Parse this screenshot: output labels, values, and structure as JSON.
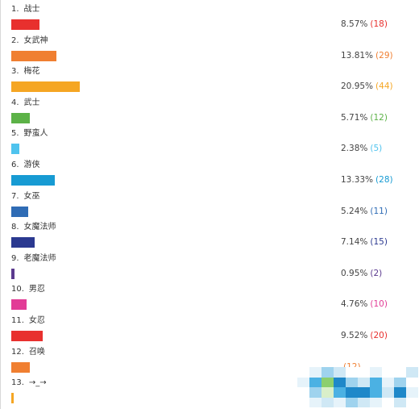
{
  "chart_data": {
    "type": "bar",
    "orientation": "horizontal",
    "unit": "%",
    "max_value": 20.95,
    "items": [
      {
        "rank": "1.",
        "name": "战士",
        "percent": "8.57%",
        "count": "(18)",
        "value": 8.57,
        "color": "#e8302e"
      },
      {
        "rank": "2.",
        "name": "女武神",
        "percent": "13.81%",
        "count": "(29)",
        "value": 13.81,
        "color": "#f07f31"
      },
      {
        "rank": "3.",
        "name": "梅花",
        "percent": "20.95%",
        "count": "(44)",
        "value": 20.95,
        "color": "#f5a623"
      },
      {
        "rank": "4.",
        "name": "武士",
        "percent": "5.71%",
        "count": "(12)",
        "value": 5.71,
        "color": "#5cb247"
      },
      {
        "rank": "5.",
        "name": "野蛮人",
        "percent": "2.38%",
        "count": "(5)",
        "value": 2.38,
        "color": "#4fc3ee"
      },
      {
        "rank": "6.",
        "name": "游侠",
        "percent": "13.33%",
        "count": "(28)",
        "value": 13.33,
        "color": "#179bd3"
      },
      {
        "rank": "7.",
        "name": "女巫",
        "percent": "5.24%",
        "count": "(11)",
        "value": 5.24,
        "color": "#2f6cb5"
      },
      {
        "rank": "8.",
        "name": "女魔法师",
        "percent": "7.14%",
        "count": "(15)",
        "value": 7.14,
        "color": "#2b3990"
      },
      {
        "rank": "9.",
        "name": "老魔法师",
        "percent": "0.95%",
        "count": "(2)",
        "value": 0.95,
        "color": "#5b3a8e"
      },
      {
        "rank": "10.",
        "name": "男忍",
        "percent": "4.76%",
        "count": "(10)",
        "value": 4.76,
        "color": "#e23c96"
      },
      {
        "rank": "11.",
        "name": "女忍",
        "percent": "9.52%",
        "count": "(20)",
        "value": 9.52,
        "color": "#e8302e"
      },
      {
        "rank": "12.",
        "name": "召唤",
        "percent": "",
        "count": "(12)",
        "value": 5.71,
        "color": "#f07f31"
      },
      {
        "rank": "13.",
        "name": "→_→",
        "percent": "",
        "count": "",
        "value": 0.6,
        "color": "#f5a623"
      }
    ]
  }
}
